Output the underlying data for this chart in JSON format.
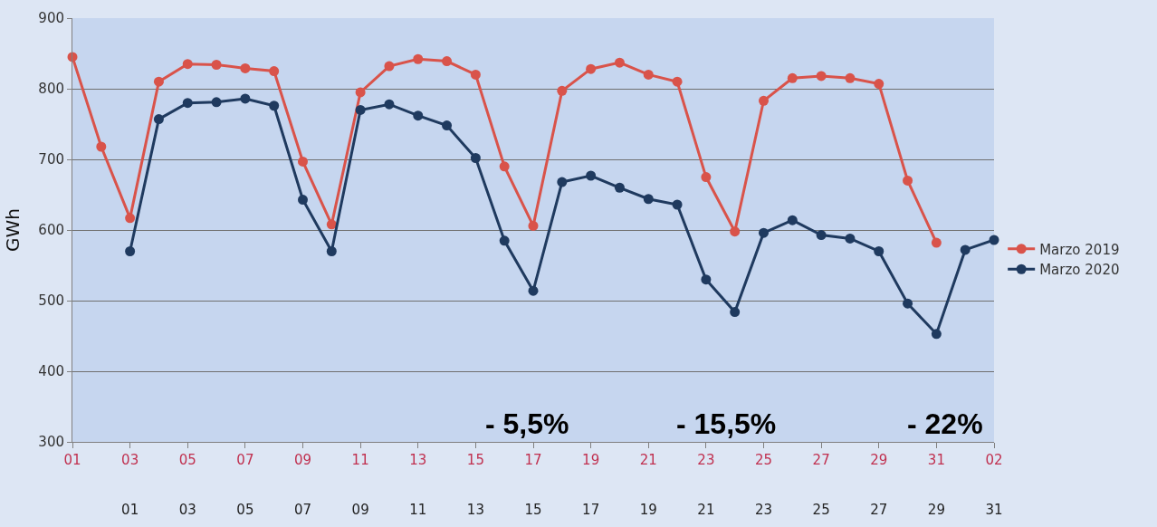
{
  "chart_data": {
    "type": "line",
    "ylabel": "GWh",
    "xlim": [
      "2019-03-01",
      "2019-04-02"
    ],
    "ylim": [
      300,
      900
    ],
    "yticks": [
      300,
      400,
      500,
      600,
      700,
      800,
      900
    ],
    "xticks": [
      {
        "value": "2019-03-01",
        "label": "01"
      },
      {
        "value": "2019-03-03",
        "label": "03"
      },
      {
        "value": "2019-03-05",
        "label": "05"
      },
      {
        "value": "2019-03-07",
        "label": "07"
      },
      {
        "value": "2019-03-09",
        "label": "09"
      },
      {
        "value": "2019-03-11",
        "label": "11"
      },
      {
        "value": "2019-03-13",
        "label": "13"
      },
      {
        "value": "2019-03-15",
        "label": "15"
      },
      {
        "value": "2019-03-17",
        "label": "17"
      },
      {
        "value": "2019-03-19",
        "label": "19"
      },
      {
        "value": "2019-03-21",
        "label": "21"
      },
      {
        "value": "2019-03-23",
        "label": "23"
      },
      {
        "value": "2019-03-25",
        "label": "25"
      },
      {
        "value": "2019-03-27",
        "label": "27"
      },
      {
        "value": "2019-03-29",
        "label": "29"
      },
      {
        "value": "2019-03-31",
        "label": "31"
      },
      {
        "value": "2019-04-02",
        "label": "02"
      }
    ],
    "x2lim": [
      "2020-02-28",
      "2020-03-31"
    ],
    "x2ticks": [
      {
        "value": "2020-03-01",
        "label": "01"
      },
      {
        "value": "2020-03-03",
        "label": "03"
      },
      {
        "value": "2020-03-05",
        "label": "05"
      },
      {
        "value": "2020-03-07",
        "label": "07"
      },
      {
        "value": "2020-03-09",
        "label": "09"
      },
      {
        "value": "2020-03-11",
        "label": "11"
      },
      {
        "value": "2020-03-13",
        "label": "13"
      },
      {
        "value": "2020-03-15",
        "label": "15"
      },
      {
        "value": "2020-03-17",
        "label": "17"
      },
      {
        "value": "2020-03-19",
        "label": "19"
      },
      {
        "value": "2020-03-21",
        "label": "21"
      },
      {
        "value": "2020-03-23",
        "label": "23"
      },
      {
        "value": "2020-03-25",
        "label": "25"
      },
      {
        "value": "2020-03-27",
        "label": "27"
      },
      {
        "value": "2020-03-29",
        "label": "29"
      },
      {
        "value": "2020-03-31",
        "label": "31"
      }
    ],
    "grid": "y",
    "legend": "right",
    "marker": "circle",
    "line_style": "solid",
    "series": [
      {
        "name": "Marzo 2019",
        "color": "#d9534a",
        "x": [
          "2019-03-01",
          "2019-03-02",
          "2019-03-03",
          "2019-03-04",
          "2019-03-05",
          "2019-03-06",
          "2019-03-07",
          "2019-03-08",
          "2019-03-09",
          "2019-03-10",
          "2019-03-11",
          "2019-03-12",
          "2019-03-13",
          "2019-03-14",
          "2019-03-15",
          "2019-03-16",
          "2019-03-17",
          "2019-03-18",
          "2019-03-19",
          "2019-03-20",
          "2019-03-21",
          "2019-03-22",
          "2019-03-23",
          "2019-03-24",
          "2019-03-25",
          "2019-03-26",
          "2019-03-27",
          "2019-03-28",
          "2019-03-29",
          "2019-03-30",
          "2019-03-31"
        ],
        "values": [
          845,
          718,
          617,
          810,
          835,
          834,
          829,
          825,
          697,
          608,
          795,
          832,
          842,
          839,
          820,
          690,
          606,
          797,
          828,
          837,
          820,
          810,
          675,
          598,
          783,
          815,
          818,
          815,
          807,
          670,
          582
        ]
      },
      {
        "name": "Marzo 2020",
        "color": "#1f3a5f",
        "axis": "x2",
        "x": [
          "2020-03-01",
          "2020-03-02",
          "2020-03-03",
          "2020-03-04",
          "2020-03-05",
          "2020-03-06",
          "2020-03-07",
          "2020-03-08",
          "2020-03-09",
          "2020-03-10",
          "2020-03-11",
          "2020-03-12",
          "2020-03-13",
          "2020-03-14",
          "2020-03-15",
          "2020-03-16",
          "2020-03-17",
          "2020-03-18",
          "2020-03-19",
          "2020-03-20",
          "2020-03-21",
          "2020-03-22",
          "2020-03-23",
          "2020-03-24",
          "2020-03-25",
          "2020-03-26",
          "2020-03-27",
          "2020-03-28",
          "2020-03-29",
          "2020-03-30",
          "2020-03-31"
        ],
        "values": [
          570,
          757,
          780,
          781,
          786,
          776,
          643,
          570,
          770,
          778,
          762,
          748,
          702,
          585,
          514,
          668,
          677,
          660,
          644,
          636,
          530,
          484,
          596,
          614,
          593,
          588,
          570,
          496,
          453,
          572,
          586
        ]
      }
    ],
    "annotations": [
      "- 5,5%",
      "- 15,5%",
      "- 22%"
    ]
  }
}
